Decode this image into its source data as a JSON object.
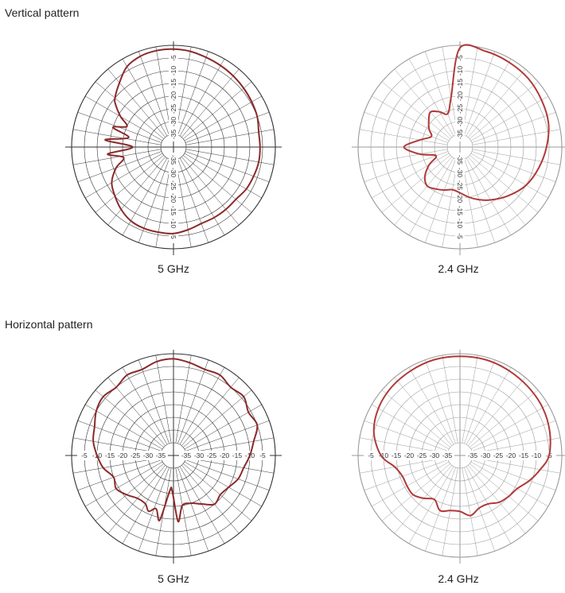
{
  "sections": [
    {
      "title": "Vertical pattern"
    },
    {
      "title": "Horizontal pattern"
    }
  ],
  "chart_data": [
    {
      "type": "polar",
      "section": "Vertical pattern",
      "caption": "5 GHz",
      "grid_color": "#333333",
      "trace_color": "#8b2a2a",
      "radial_labels": [
        "-5",
        "-10",
        "-15",
        "-20",
        "-25",
        "-30",
        "-35"
      ],
      "label_axis": "vertical",
      "r_min_db": -40,
      "r_max_db": 0,
      "pattern_db": {
        "angles": [
          0,
          10,
          20,
          30,
          40,
          50,
          60,
          70,
          80,
          90,
          100,
          110,
          120,
          130,
          140,
          150,
          160,
          170,
          180,
          190,
          200,
          210,
          220,
          230,
          240,
          250,
          258,
          264,
          270,
          276,
          282,
          288,
          294,
          300,
          306,
          310,
          320,
          330,
          340,
          350
        ],
        "gain": [
          -1.5,
          -1.8,
          -2.5,
          -3,
          -3.5,
          -4,
          -4.5,
          -5,
          -6,
          -6,
          -6,
          -6.5,
          -7,
          -8,
          -8,
          -8,
          -8,
          -7,
          -6,
          -6,
          -6,
          -6.5,
          -8,
          -10,
          -12,
          -16,
          -20,
          -14,
          -24,
          -13,
          -22,
          -15,
          -20,
          -16,
          -12,
          -10,
          -7,
          -3.5,
          -2,
          -1.5
        ]
      }
    },
    {
      "type": "polar",
      "section": "Vertical pattern",
      "caption": "2.4 GHz",
      "grid_color": "#9a9a9a",
      "trace_color": "#b03a3a",
      "radial_labels": [
        "-5",
        "-10",
        "-15",
        "-20",
        "-25",
        "-30",
        "-35"
      ],
      "label_axis": "vertical",
      "r_min_db": -40,
      "r_max_db": 0,
      "pattern_db": {
        "angles": [
          0,
          15,
          30,
          45,
          60,
          75,
          90,
          105,
          120,
          135,
          150,
          160,
          170,
          180,
          190,
          200,
          210,
          220,
          230,
          240,
          250,
          260,
          270,
          280,
          290,
          300,
          310,
          320,
          330,
          340,
          350
        ],
        "gain": [
          -1,
          -1,
          -1.5,
          -2,
          -3,
          -4,
          -6,
          -8,
          -10,
          -13,
          -16,
          -18,
          -20,
          -22,
          -23,
          -22,
          -21,
          -20,
          -22,
          -26,
          -30,
          -24,
          -18,
          -24,
          -28,
          -26,
          -24,
          -22,
          -24,
          -26,
          -20
        ]
      }
    },
    {
      "type": "polar",
      "section": "Horizontal pattern",
      "caption": "5 GHz",
      "grid_color": "#333333",
      "trace_color": "#8b2a2a",
      "radial_labels": [
        "-5",
        "-10",
        "-15",
        "-20",
        "-25",
        "-30",
        "-35"
      ],
      "label_axis": "horizontal",
      "r_min_db": -40,
      "r_max_db": 0,
      "pattern_db": {
        "angles": [
          0,
          10,
          20,
          30,
          40,
          50,
          60,
          70,
          80,
          90,
          100,
          110,
          120,
          130,
          140,
          150,
          160,
          170,
          176,
          182,
          186,
          192,
          198,
          204,
          210,
          220,
          230,
          240,
          250,
          260,
          270,
          280,
          290,
          300,
          310,
          320,
          330,
          340,
          350
        ],
        "gain": [
          -2,
          -3,
          -4,
          -3.5,
          -5,
          -4,
          -6,
          -5,
          -8,
          -10,
          -12,
          -13,
          -15,
          -16,
          -15,
          -18,
          -20,
          -20,
          -14,
          -26,
          -26,
          -14,
          -18,
          -16,
          -18,
          -18,
          -16,
          -14,
          -15,
          -12,
          -10,
          -8,
          -7,
          -5,
          -4,
          -5,
          -3.5,
          -4,
          -2.5
        ]
      }
    },
    {
      "type": "polar",
      "section": "Horizontal pattern",
      "caption": "2.4 GHz",
      "grid_color": "#9a9a9a",
      "trace_color": "#b03a3a",
      "radial_labels": [
        "-5",
        "-10",
        "-15",
        "-20",
        "-25",
        "-30",
        "-35"
      ],
      "label_axis": "horizontal",
      "r_min_db": -40,
      "r_max_db": 0,
      "pattern_db": {
        "angles": [
          0,
          15,
          30,
          45,
          60,
          75,
          90,
          100,
          110,
          120,
          130,
          140,
          150,
          160,
          170,
          180,
          190,
          200,
          210,
          220,
          230,
          240,
          250,
          260,
          270,
          285,
          300,
          315,
          330,
          345
        ],
        "gain": [
          -1,
          -1,
          -1.5,
          -2,
          -2.5,
          -3.5,
          -5,
          -8,
          -11,
          -14,
          -15,
          -16,
          -18,
          -18,
          -16,
          -18,
          -18,
          -17,
          -20,
          -18,
          -16,
          -16,
          -16,
          -14,
          -9,
          -5,
          -3,
          -2,
          -1.5,
          -1
        ]
      }
    }
  ]
}
